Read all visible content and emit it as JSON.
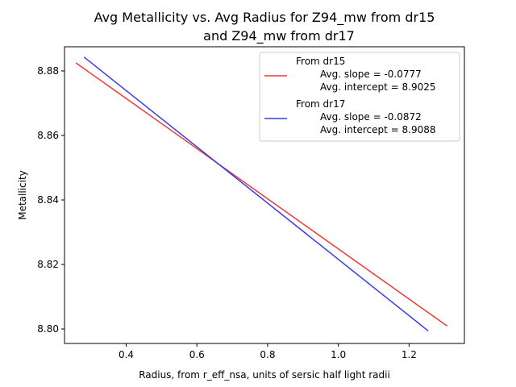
{
  "chart_data": {
    "type": "line",
    "title_line1": "Avg Metallicity vs. Avg Radius for Z94_mw from dr15",
    "title_line2": "and Z94_mw from dr17",
    "xlabel": "Radius, from r_eff_nsa, units of sersic half light radii",
    "ylabel": "Metallicity",
    "xlim": [
      0.2255,
      1.3565
    ],
    "ylim": [
      8.7955,
      8.8875
    ],
    "xticks": [
      "0.4",
      "0.6",
      "0.8",
      "1.0",
      "1.2"
    ],
    "yticks": [
      "8.80",
      "8.82",
      "8.84",
      "8.86",
      "8.88"
    ],
    "grid": false,
    "legend_position": "top-right",
    "series": [
      {
        "name": "From dr15",
        "slope_text": "Avg. slope = -0.0777",
        "intercept_text": "Avg. intercept = 8.9025",
        "color": "#f03a3a",
        "x": [
          0.2578,
          1.3078
        ],
        "y": [
          8.8825,
          8.8009
        ]
      },
      {
        "name": "From dr17",
        "slope_text": "Avg. slope = -0.0872",
        "intercept_text": "Avg. intercept = 8.9088",
        "color": "#3a3af0",
        "x": [
          0.2808,
          1.2542
        ],
        "y": [
          8.8843,
          8.7994
        ]
      }
    ]
  }
}
